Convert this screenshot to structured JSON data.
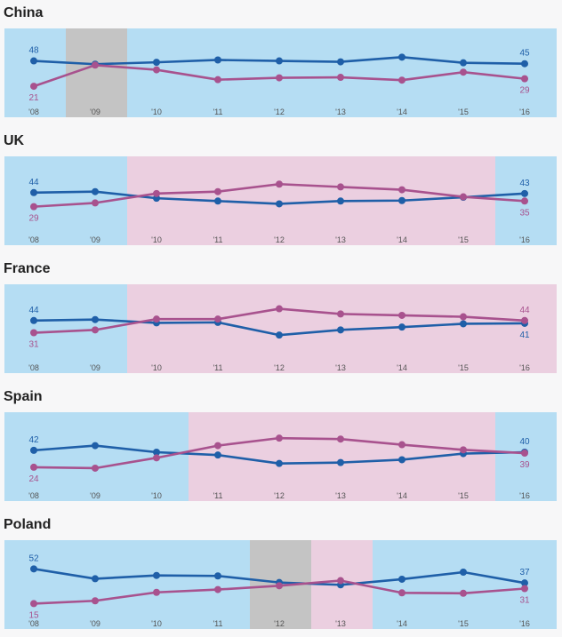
{
  "colors": {
    "series_a": "#1f5fa8",
    "series_b": "#a8528e",
    "band_a": "#b5ddf3",
    "band_b": "#ebcfe0",
    "band_neutral": "#c4c4c4"
  },
  "chart_data": [
    {
      "type": "line",
      "title": "China",
      "categories": [
        "'08",
        "'09",
        "'10",
        "'11",
        "'12",
        "'13",
        "'14",
        "'15",
        "'16"
      ],
      "series": [
        {
          "key": "a",
          "values": [
            48,
            44.5,
            46.5,
            49,
            48,
            47,
            52,
            46,
            45
          ],
          "labels": {
            "start": "48",
            "end": "45"
          }
        },
        {
          "key": "b",
          "values": [
            21,
            43.5,
            38.5,
            28,
            30,
            30.5,
            27.5,
            36,
            29
          ],
          "labels": {
            "start": "21",
            "end": "29"
          }
        }
      ],
      "ylim": [
        5,
        75
      ],
      "bands": [
        "a",
        "neutral",
        "a",
        "a",
        "a",
        "a",
        "a",
        "a",
        "a"
      ]
    },
    {
      "type": "line",
      "title": "UK",
      "categories": [
        "'08",
        "'09",
        "'10",
        "'11",
        "'12",
        "'13",
        "'14",
        "'15",
        "'16"
      ],
      "series": [
        {
          "key": "a",
          "values": [
            44,
            45,
            38,
            35,
            32,
            35,
            35.5,
            39,
            43
          ],
          "labels": {
            "start": "44",
            "end": "43"
          }
        },
        {
          "key": "b",
          "values": [
            29,
            33,
            43,
            45,
            53,
            50,
            47,
            39.5,
            35
          ],
          "labels": {
            "start": "29",
            "end": "35"
          }
        }
      ],
      "ylim": [
        5,
        75
      ],
      "bands": [
        "a",
        "a",
        "b",
        "b",
        "b",
        "b",
        "b",
        "b",
        "a"
      ]
    },
    {
      "type": "line",
      "title": "France",
      "categories": [
        "'08",
        "'09",
        "'10",
        "'11",
        "'12",
        "'13",
        "'14",
        "'15",
        "'16"
      ],
      "series": [
        {
          "key": "a",
          "values": [
            44,
            45,
            41.5,
            42,
            28.5,
            34,
            37,
            40.5,
            41
          ],
          "labels": {
            "start": "44",
            "end": "41"
          }
        },
        {
          "key": "b",
          "values": [
            31,
            34,
            45.5,
            45.5,
            56.5,
            51,
            49.5,
            48,
            44
          ],
          "labels": {
            "start": "31",
            "end": "44"
          }
        }
      ],
      "ylim": [
        5,
        75
      ],
      "bands": [
        "a",
        "a",
        "b",
        "b",
        "b",
        "b",
        "b",
        "b",
        "b"
      ]
    },
    {
      "type": "line",
      "title": "Spain",
      "categories": [
        "'08",
        "'09",
        "'10",
        "'11",
        "'12",
        "'13",
        "'14",
        "'15",
        "'16"
      ],
      "series": [
        {
          "key": "a",
          "values": [
            42,
            47,
            40,
            37,
            28,
            29,
            32,
            38.5,
            40
          ],
          "labels": {
            "start": "42",
            "end": "40"
          }
        },
        {
          "key": "b",
          "values": [
            24,
            23,
            34,
            47,
            55,
            54,
            48,
            42.5,
            39
          ],
          "labels": {
            "start": "24",
            "end": "39"
          }
        }
      ],
      "ylim": [
        5,
        75
      ],
      "bands": [
        "a",
        "a",
        "a",
        "b",
        "b",
        "b",
        "b",
        "b",
        "a"
      ]
    },
    {
      "type": "line",
      "title": "Poland",
      "categories": [
        "'08",
        "'09",
        "'10",
        "'11",
        "'12",
        "'13",
        "'14",
        "'15",
        "'16"
      ],
      "series": [
        {
          "key": "a",
          "values": [
            52,
            41.5,
            45,
            44.5,
            37.5,
            35,
            41,
            48.5,
            37
          ],
          "labels": {
            "start": "52",
            "end": "37"
          }
        },
        {
          "key": "b",
          "values": [
            15,
            18,
            27,
            30,
            34,
            39.5,
            26.5,
            26,
            31
          ],
          "labels": {
            "start": "15",
            "end": "31"
          }
        }
      ],
      "ylim": [
        5,
        75
      ],
      "bands": [
        "a",
        "a",
        "a",
        "a",
        "neutral",
        "b",
        "a",
        "a",
        "a"
      ]
    }
  ]
}
